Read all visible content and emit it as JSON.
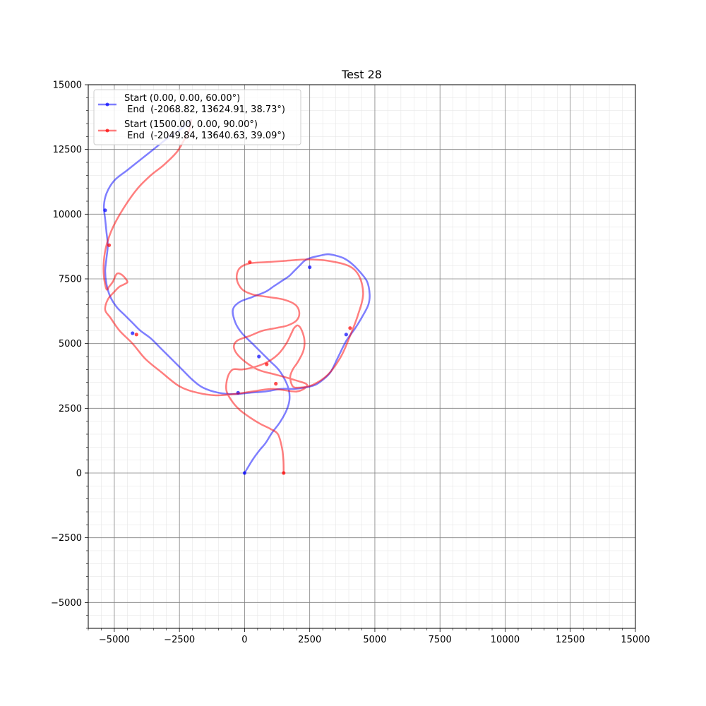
{
  "chart_data": {
    "type": "line",
    "title": "Test 28",
    "xlabel": "",
    "ylabel": "",
    "xlim": [
      -6000,
      15000
    ],
    "ylim": [
      -6000,
      15000
    ],
    "xticks": [
      -5000,
      -2500,
      0,
      2500,
      5000,
      7500,
      10000,
      12500,
      15000
    ],
    "yticks": [
      -5000,
      -2500,
      0,
      2500,
      5000,
      7500,
      10000,
      12500,
      15000
    ],
    "xtick_labels": [
      "−5000",
      "−2500",
      "0",
      "2500",
      "5000",
      "7500",
      "10000",
      "12500",
      "15000"
    ],
    "ytick_labels": [
      "−5000",
      "−2500",
      "0",
      "2500",
      "5000",
      "7500",
      "10000",
      "12500",
      "15000"
    ],
    "grid": true,
    "legend_position": "top-left",
    "series": [
      {
        "name_line1": "Start (0.00, 0.00, 60.00°)",
        "name_line2": " End  (-2068.82, 13624.91, 38.73°)",
        "color": "#0000ff",
        "x": [
          0,
          300,
          550,
          800,
          1050,
          1350,
          1600,
          1720,
          1700,
          1550,
          1300,
          1000,
          700,
          300,
          -100,
          -350,
          -450,
          -200,
          300,
          800,
          1100,
          1400,
          1700,
          1900,
          2100,
          2300,
          2500,
          2900,
          3200,
          3500,
          3800,
          4100,
          4400,
          4700,
          4800,
          4750,
          4550,
          4250,
          3900,
          3600,
          3300,
          3000,
          2700,
          2300,
          1900,
          1400,
          800,
          200,
          -400,
          -1000,
          -1600,
          -2000,
          -2400,
          -2800,
          -3200,
          -3600,
          -4000,
          -4300,
          -4600,
          -4900,
          -5150,
          -5300,
          -5350,
          -5300,
          -5250,
          -5300,
          -5350,
          -5400,
          -5300,
          -5000,
          -4500,
          -4000,
          -3500,
          -3000,
          -2500,
          -2200,
          -2068.82
        ],
        "y": [
          0,
          500,
          850,
          1150,
          1550,
          1950,
          2400,
          2800,
          3200,
          3600,
          4000,
          4300,
          4600,
          5000,
          5400,
          5800,
          6300,
          6600,
          6800,
          7000,
          7200,
          7400,
          7600,
          7800,
          8000,
          8200,
          8300,
          8400,
          8450,
          8400,
          8300,
          8100,
          7800,
          7400,
          6900,
          6500,
          6100,
          5600,
          5100,
          4500,
          3900,
          3600,
          3400,
          3300,
          3250,
          3250,
          3150,
          3100,
          3050,
          3100,
          3300,
          3600,
          4000,
          4400,
          4800,
          5200,
          5500,
          5800,
          6100,
          6400,
          6800,
          7300,
          7800,
          8300,
          8800,
          9300,
          9800,
          10300,
          10800,
          11300,
          11700,
          12100,
          12500,
          12900,
          13250,
          13500,
          13624.91
        ],
        "markers_x": [
          0,
          -250,
          550,
          2500,
          3900,
          -4300,
          -5350
        ],
        "markers_y": [
          0,
          3100,
          4500,
          7950,
          5350,
          5400,
          10150
        ]
      },
      {
        "name_line1": "Start (1500.00, 0.00, 90.00°)",
        "name_line2": " End  (-2049.84, 13640.63, 39.09°)",
        "color": "#ff0000",
        "x": [
          1500,
          1490,
          1430,
          1280,
          1000,
          600,
          200,
          -200,
          -500,
          -700,
          -650,
          -450,
          -100,
          400,
          900,
          1300,
          1600,
          1800,
          1900,
          2050,
          2200,
          2300,
          2250,
          2050,
          1850,
          1750,
          1850,
          2100,
          2600,
          3200,
          3700,
          4050,
          4350,
          4550,
          4400,
          4000,
          3200,
          2400,
          1600,
          900,
          200,
          -200,
          -300,
          -100,
          300,
          900,
          1500,
          1950,
          2100,
          2000,
          1650,
          1200,
          700,
          200,
          -300,
          -400,
          -100,
          500,
          1200,
          1900,
          2400,
          2000,
          1100,
          300,
          -400,
          -1100,
          -1800,
          -2500,
          -3200,
          -3800,
          -4300,
          -4800,
          -5150,
          -5350,
          -5250,
          -5000,
          -4800,
          -4600,
          -4500,
          -4700,
          -4900,
          -5050,
          -5200,
          -5300,
          -5400,
          -5400,
          -5300,
          -5050,
          -4600,
          -4100,
          -3600,
          -3100,
          -2600,
          -2300,
          -2100,
          -2049.84
        ],
        "y": [
          0,
          500,
          1000,
          1500,
          1700,
          1900,
          2150,
          2450,
          2800,
          3200,
          3700,
          4000,
          4000,
          4100,
          4300,
          4600,
          5000,
          5400,
          5600,
          5700,
          5500,
          5100,
          4700,
          4300,
          4000,
          3700,
          3350,
          3300,
          3400,
          3800,
          4500,
          5300,
          6100,
          6900,
          7600,
          8000,
          8200,
          8250,
          8200,
          8150,
          8100,
          7900,
          7500,
          7100,
          6900,
          6800,
          6700,
          6500,
          6200,
          5900,
          5700,
          5600,
          5500,
          5300,
          5100,
          4800,
          4400,
          4000,
          3800,
          3600,
          3400,
          3150,
          3250,
          3150,
          3050,
          3000,
          3100,
          3350,
          3900,
          4400,
          5000,
          5500,
          6000,
          6300,
          6700,
          7000,
          7200,
          7300,
          7400,
          7650,
          7700,
          7400,
          7200,
          7100,
          7600,
          8200,
          8800,
          9500,
          10300,
          11000,
          11500,
          11900,
          12400,
          12900,
          13300,
          13640.63
        ],
        "markers_x": [
          1500,
          1200,
          850,
          200,
          4050,
          -4150,
          -5200
        ],
        "markers_y": [
          0,
          3450,
          4200,
          8150,
          5600,
          5350,
          8800
        ]
      }
    ]
  }
}
